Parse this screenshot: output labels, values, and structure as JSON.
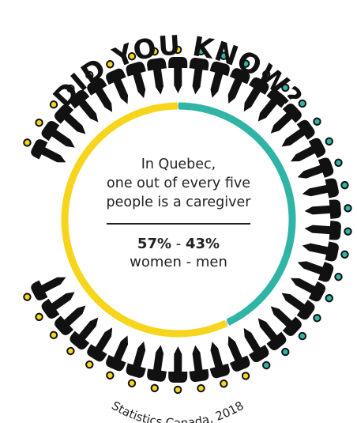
{
  "headline": "DID YOU KNOW?",
  "body": {
    "line1": "In Quebec,",
    "line2": "one out of every five",
    "line3": "people is a caregiver"
  },
  "stat": {
    "women_pct": "57%",
    "separator": " - ",
    "men_pct": "43%",
    "labels": "women - men"
  },
  "source": "Statistics Canada, 2018",
  "proportion": {
    "women": 57,
    "men": 43
  },
  "colors": {
    "women": "#f7d51d",
    "men": "#2fb4a6",
    "track": "#d0d0d0",
    "figure": "#111111",
    "text": "#222222"
  },
  "icons": [
    "person-icon"
  ]
}
